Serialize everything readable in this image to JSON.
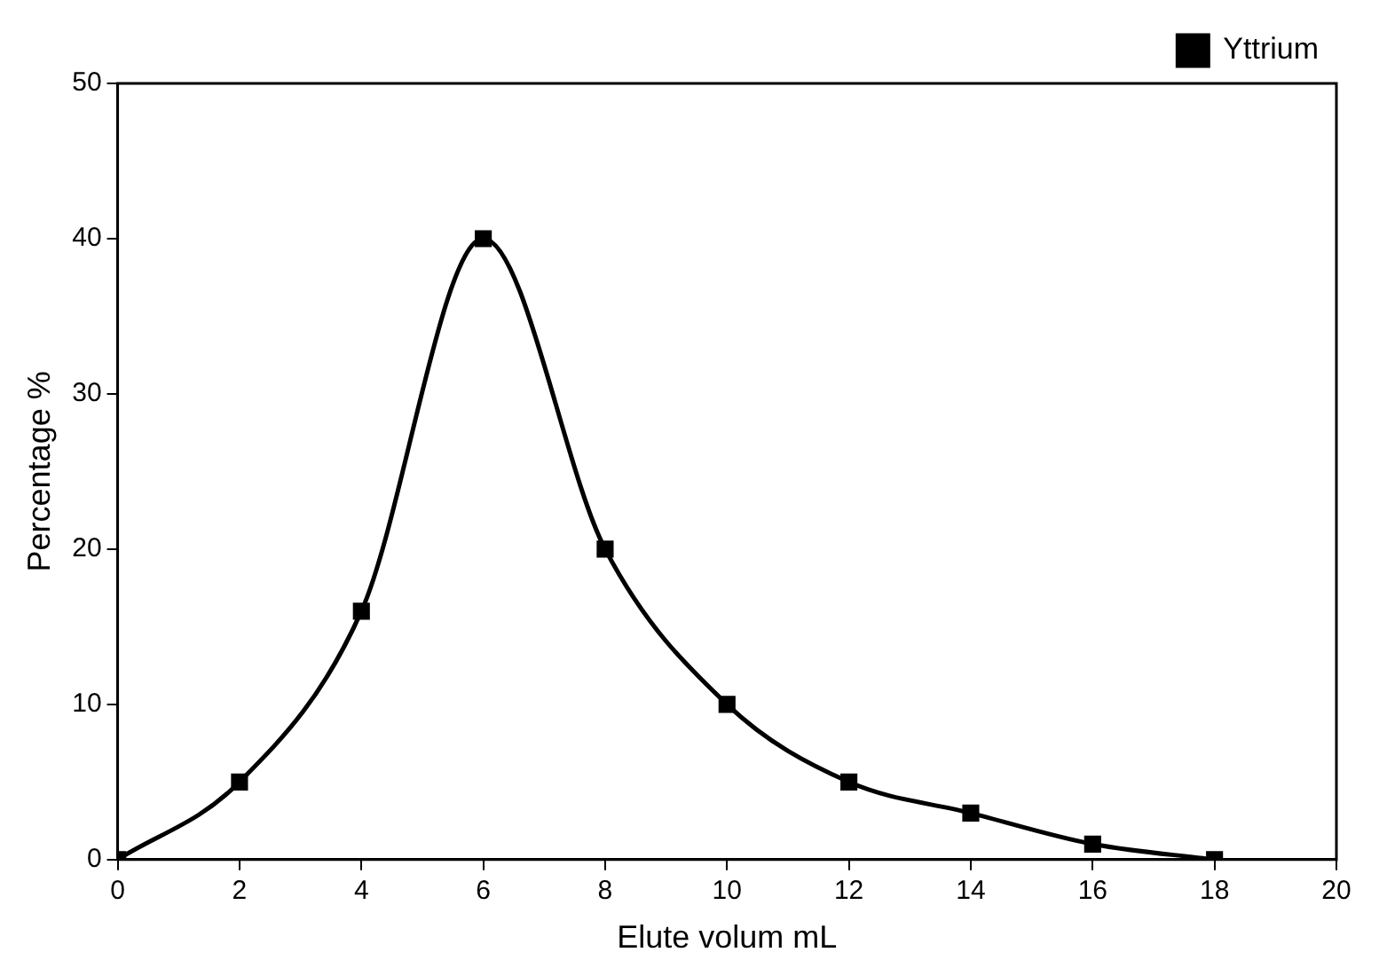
{
  "chart_data": {
    "type": "line",
    "xlabel": "Elute volum mL",
    "ylabel": "Percentage %",
    "x": [
      0,
      2,
      4,
      6,
      8,
      10,
      12,
      14,
      16,
      18
    ],
    "series": [
      {
        "name": "Yttrium",
        "color": "#000000",
        "values": [
          0,
          5,
          16,
          40,
          20,
          10,
          5,
          3,
          1,
          0
        ]
      }
    ],
    "xlim": [
      0,
      20
    ],
    "xticks": [
      0,
      2,
      4,
      6,
      8,
      10,
      12,
      14,
      16,
      18,
      20
    ],
    "ylim": [
      0,
      50
    ],
    "yticks": [
      0,
      10,
      20,
      30,
      40,
      50
    ],
    "grid": false,
    "legend": "top right",
    "marker": "square",
    "line_style": "solid"
  }
}
